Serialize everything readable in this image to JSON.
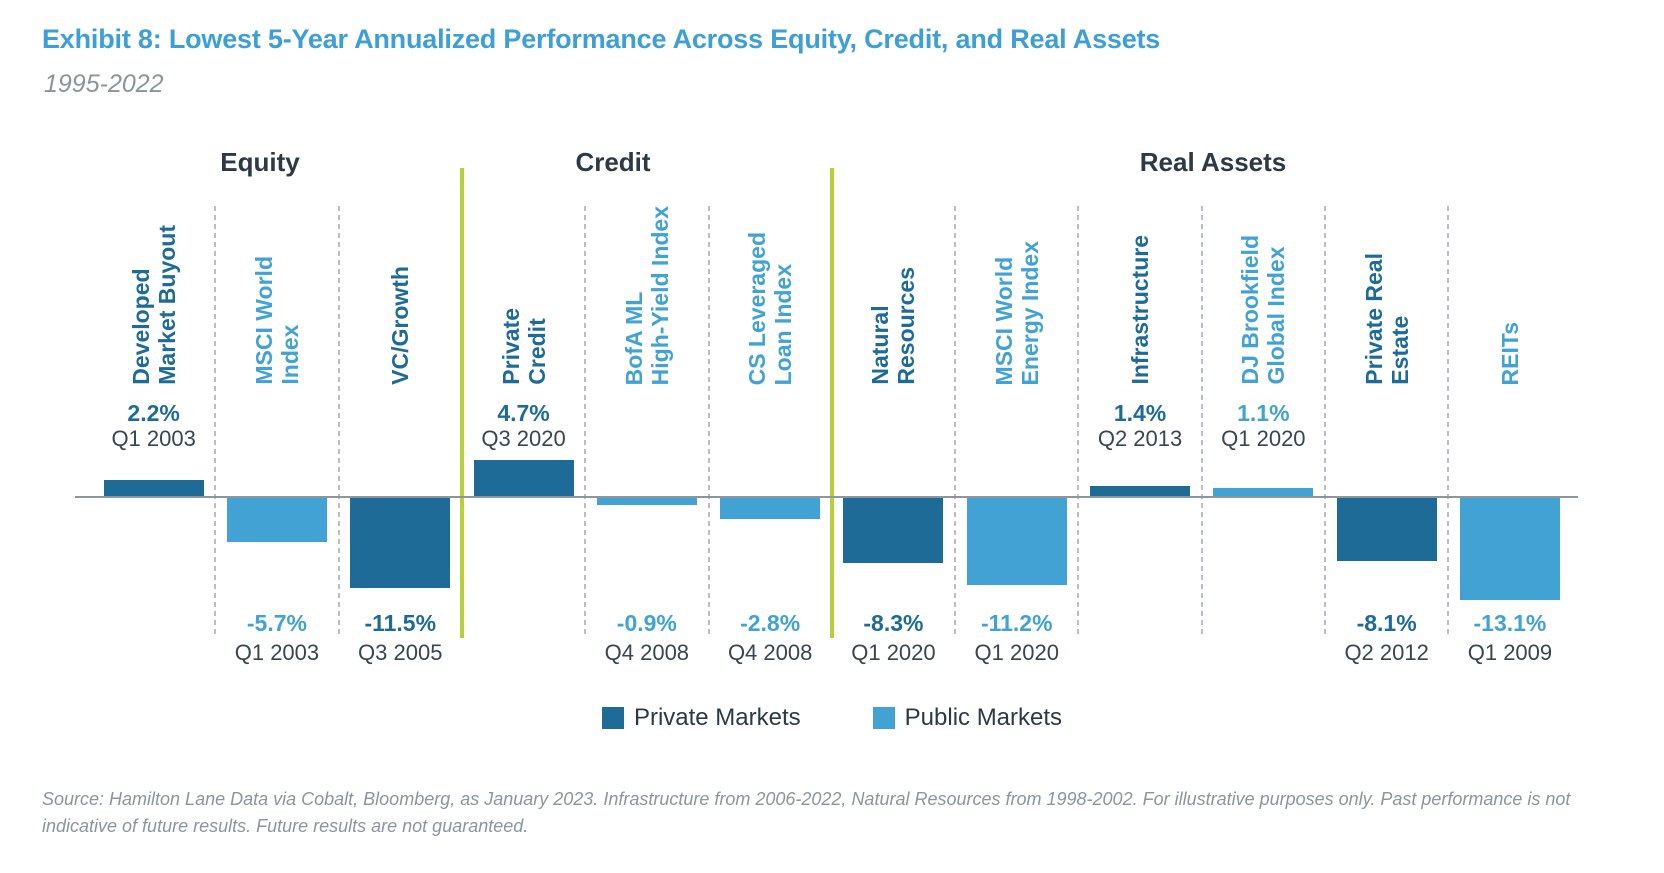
{
  "title": "Exhibit 8: Lowest 5-Year Annualized Performance Across Equity, Credit, and Real Assets",
  "subtitle": "1995-2022",
  "colors": {
    "private": "#1d6b96",
    "public": "#41a2d3",
    "title": "#3e9ed6",
    "heading": "#2c3a46",
    "datecolor": "#39454f",
    "axis": "#8d969c",
    "dashed": "#b9bfc4",
    "lime": "#b8d037",
    "muted": "#8b959d",
    "muted2": "#8a949b"
  },
  "chart_data": {
    "type": "bar",
    "title": "Exhibit 8: Lowest 5-Year Annualized Performance Across Equity, Credit, and Real Assets",
    "subtitle": "1995-2022",
    "unit": "percent, lowest 5-year annualized performance",
    "value_suffix": "%",
    "legend_position": "bottom",
    "legend": [
      {
        "label": "Private Markets",
        "market": "private"
      },
      {
        "label": "Public Markets",
        "market": "public"
      }
    ],
    "groups": [
      {
        "name": "Equity",
        "bars": [
          {
            "label": "Developed\nMarket Buyout",
            "market": "private",
            "value": 2.2,
            "period": "Q1 2003"
          },
          {
            "label": "MSCI World\nIndex",
            "market": "public",
            "value": -5.7,
            "period": "Q1 2003"
          },
          {
            "label": "VC/Growth",
            "market": "private",
            "value": -11.5,
            "period": "Q3 2005"
          }
        ]
      },
      {
        "name": "Credit",
        "bars": [
          {
            "label": "Private\nCredit",
            "market": "private",
            "value": 4.7,
            "period": "Q3 2020"
          },
          {
            "label": "BofA ML\nHigh-Yield Index",
            "market": "public",
            "value": -0.9,
            "period": "Q4 2008"
          },
          {
            "label": "CS Leveraged\nLoan Index",
            "market": "public",
            "value": -2.8,
            "period": "Q4 2008"
          }
        ]
      },
      {
        "name": "Real Assets",
        "bars": [
          {
            "label": "Natural\nResources",
            "market": "private",
            "value": -8.3,
            "period": "Q1 2020"
          },
          {
            "label": "MSCI World\nEnergy Index",
            "market": "public",
            "value": -11.2,
            "period": "Q1 2020"
          },
          {
            "label": "Infrastructure",
            "market": "private",
            "value": 1.4,
            "period": "Q2 2013"
          },
          {
            "label": "DJ Brookfield\nGlobal Index",
            "market": "public",
            "value": 1.1,
            "period": "Q1 2020"
          },
          {
            "label": "Private Real\nEstate",
            "market": "private",
            "value": -8.1,
            "period": "Q2 2012"
          },
          {
            "label": "REITs",
            "market": "public",
            "value": -13.1,
            "period": "Q1 2009"
          }
        ]
      }
    ]
  },
  "source": "Source: Hamilton Lane Data via Cobalt, Bloomberg, as January 2023. Infrastructure from 2006-2022, Natural Resources from 1998-2002. For illustrative purposes only. Past performance is not indicative of future results. Future results are not guaranteed."
}
